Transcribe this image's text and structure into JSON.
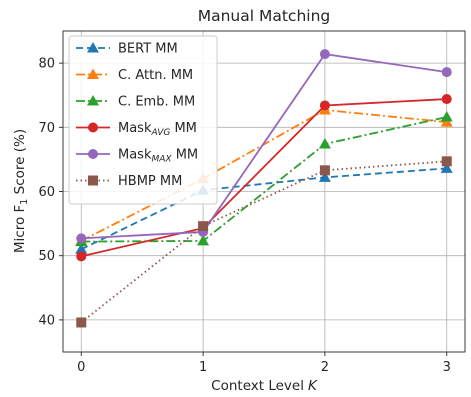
{
  "chart_data": {
    "type": "line",
    "title": "Manual Matching",
    "xlabel": "Context Level",
    "xlabel_var": "K",
    "ylabel": "Micro F",
    "ylabel_sub": "1",
    "ylabel_rest": " Score (%)",
    "x": [
      0,
      1,
      2,
      3
    ],
    "x_ticks": [
      "0",
      "1",
      "2",
      "3"
    ],
    "y_ticks": [
      "40",
      "50",
      "60",
      "70",
      "80"
    ],
    "xlim": [
      -0.15,
      3.15
    ],
    "ylim": [
      35,
      85
    ],
    "grid": true,
    "legend_position": "top-left",
    "series": [
      {
        "name": "BERT MM",
        "label_main": "BERT MM",
        "label_sub": "",
        "label_rest": "",
        "values": [
          51.0,
          60.2,
          62.2,
          63.6
        ],
        "color": "#1f77b4",
        "dash": "7,4",
        "marker": "triangle"
      },
      {
        "name": "C. Attn. MM",
        "label_main": "C. Attn. MM",
        "label_sub": "",
        "label_rest": "",
        "values": [
          52.3,
          62.0,
          72.7,
          70.8
        ],
        "color": "#ff7f0e",
        "dash": "9,3,2,3",
        "marker": "triangle"
      },
      {
        "name": "C. Emb. MM",
        "label_main": "C. Emb. MM",
        "label_sub": "",
        "label_rest": "",
        "values": [
          52.2,
          52.3,
          67.4,
          71.6
        ],
        "color": "#2ca02c",
        "dash": "9,3,2,3",
        "marker": "triangle"
      },
      {
        "name": "MaskAVG MM",
        "label_main": "Mask",
        "label_sub": "AVG",
        "label_rest": " MM",
        "values": [
          49.9,
          54.3,
          73.4,
          74.4
        ],
        "color": "#d62728",
        "dash": "",
        "marker": "circle"
      },
      {
        "name": "MaskMAX MM",
        "label_main": "Mask",
        "label_sub": "MAX",
        "label_rest": " MM",
        "values": [
          52.7,
          53.7,
          81.4,
          78.6
        ],
        "color": "#9467bd",
        "dash": "",
        "marker": "circle"
      },
      {
        "name": "HBMP MM",
        "label_main": "HBMP MM",
        "label_sub": "",
        "label_rest": "",
        "values": [
          39.6,
          54.6,
          63.3,
          64.7
        ],
        "color": "#8c564b",
        "dash": "1.5,3",
        "marker": "square"
      }
    ]
  }
}
